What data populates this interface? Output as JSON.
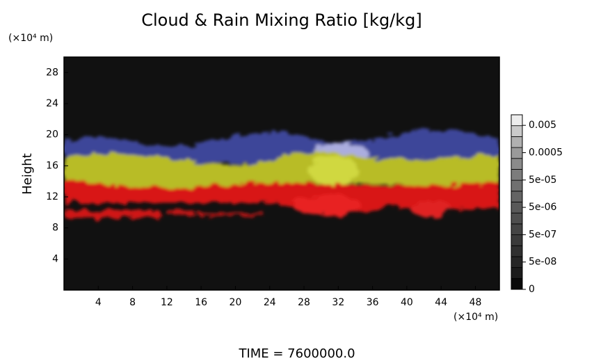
{
  "chart_data": {
    "type": "heatmap",
    "title": "Cloud & Rain Mixing Ratio [kg/kg]",
    "y_label": "Height",
    "x_unit": "(×10⁴ m)",
    "y_unit": "(×10⁴ m)",
    "footer": "TIME = 7600000.0",
    "xlim": [
      0,
      50.8
    ],
    "ylim": [
      0,
      30
    ],
    "xticks": [
      4,
      8,
      12,
      16,
      20,
      24,
      28,
      32,
      36,
      40,
      44,
      48
    ],
    "yticks": [
      4,
      8,
      12,
      16,
      20,
      24,
      28
    ],
    "background": "#111111",
    "colorbar": {
      "ticks": [
        0,
        {
          "value": 5e-08,
          "label": "5e-08"
        },
        {
          "value": 5e-07,
          "label": "5e-07"
        },
        {
          "value": 5e-06,
          "label": "5e-06"
        },
        {
          "value": 5e-05,
          "label": "5e-05"
        },
        0.0005,
        0.005
      ],
      "colors": [
        "#0a0a0a",
        "#1c1c1c",
        "#262626",
        "#303030",
        "#3a3a3a",
        "#444444",
        "#4e4e4e",
        "#595959",
        "#646464",
        "#707070",
        "#7c7c7c",
        "#8a8a8a",
        "#9a9a9a",
        "#b0b0b0",
        "#cacaca",
        "#ececec"
      ]
    }
  }
}
